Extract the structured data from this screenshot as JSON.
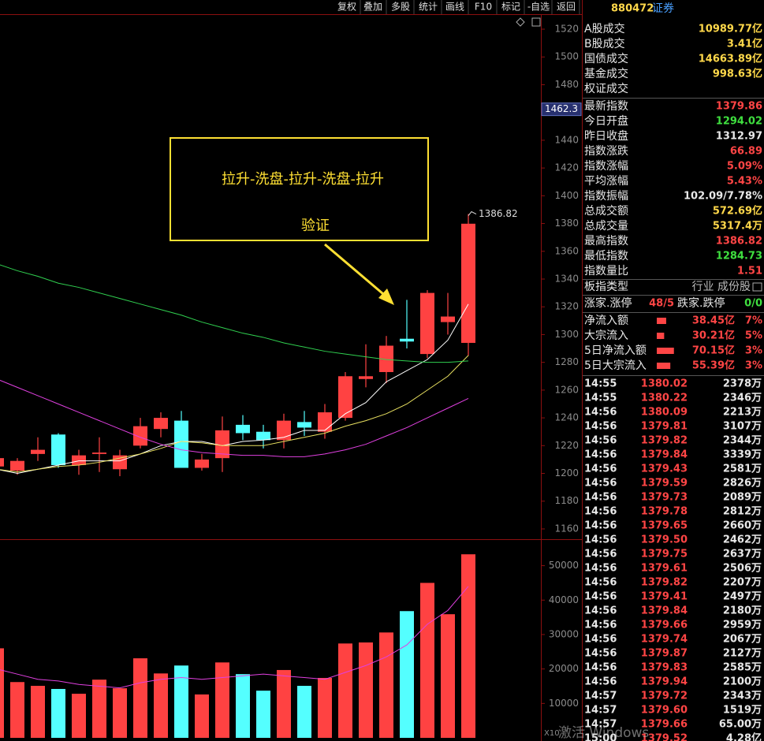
{
  "toolbar": [
    "复权",
    "叠加",
    "多股",
    "统计",
    "画线",
    "F10",
    "标记",
    "-自选",
    "返回"
  ],
  "header": {
    "code": "880472",
    "name": "证券"
  },
  "price_chart": {
    "ylim": [
      1152.6,
      1530.8
    ],
    "yticks": [
      1520,
      1500,
      1480,
      1460,
      1440,
      1420,
      1400,
      1380,
      1360,
      1340,
      1320,
      1300,
      1280,
      1260,
      1240,
      1220,
      1200,
      1180,
      1160
    ],
    "cursor_price": 1462.3,
    "high_label": 1386.82,
    "annotation": {
      "title": "拉升-洗盘-拉升-洗盘-拉升",
      "note": "验证"
    },
    "up_color": "#ff4242",
    "down_color": "#54ffff",
    "candles": [
      {
        "open": 1205,
        "high": 1213,
        "low": 1203,
        "close": 1211
      },
      {
        "open": 1202,
        "high": 1211,
        "low": 1199,
        "close": 1209
      },
      {
        "open": 1214,
        "high": 1226,
        "low": 1209,
        "close": 1217
      },
      {
        "open": 1228,
        "high": 1229,
        "low": 1204,
        "close": 1206
      },
      {
        "open": 1206,
        "high": 1217,
        "low": 1199,
        "close": 1213
      },
      {
        "open": 1214,
        "high": 1226,
        "low": 1201,
        "close": 1215
      },
      {
        "open": 1203,
        "high": 1217,
        "low": 1198,
        "close": 1213
      },
      {
        "open": 1220,
        "high": 1240,
        "low": 1218,
        "close": 1234
      },
      {
        "open": 1232,
        "high": 1244,
        "low": 1226,
        "close": 1240
      },
      {
        "open": 1238,
        "high": 1245,
        "low": 1204,
        "close": 1204
      },
      {
        "open": 1204,
        "high": 1214,
        "low": 1202,
        "close": 1210
      },
      {
        "open": 1211,
        "high": 1241,
        "low": 1201,
        "close": 1231
      },
      {
        "open": 1235,
        "high": 1242,
        "low": 1224,
        "close": 1229
      },
      {
        "open": 1230,
        "high": 1235,
        "low": 1218,
        "close": 1224
      },
      {
        "open": 1224,
        "high": 1243,
        "low": 1218,
        "close": 1238
      },
      {
        "open": 1237,
        "high": 1245,
        "low": 1227,
        "close": 1233
      },
      {
        "open": 1230,
        "high": 1250,
        "low": 1225,
        "close": 1244
      },
      {
        "open": 1240,
        "high": 1273,
        "low": 1238,
        "close": 1270
      },
      {
        "open": 1268,
        "high": 1293,
        "low": 1262,
        "close": 1270
      },
      {
        "open": 1273,
        "high": 1299,
        "low": 1265,
        "close": 1292
      },
      {
        "open": 1297,
        "high": 1325,
        "low": 1290,
        "close": 1295
      },
      {
        "open": 1286,
        "high": 1332,
        "low": 1283,
        "close": 1330
      },
      {
        "open": 1309,
        "high": 1330,
        "low": 1300,
        "close": 1313
      },
      {
        "open": 1294.02,
        "high": 1386.82,
        "low": 1284.73,
        "close": 1379.86
      }
    ],
    "ma_lines": [
      {
        "color": "#ffffff",
        "values": [
          1203,
          1200,
          1203,
          1206,
          1209,
          1209,
          1209,
          1214,
          1220,
          1223,
          1223,
          1220,
          1223,
          1224,
          1226,
          1231,
          1231,
          1243,
          1251,
          1266,
          1274,
          1282,
          1296,
          1322
        ]
      },
      {
        "color": "#e8e060",
        "values": [
          1203,
          1201,
          1203,
          1205,
          1206,
          1208,
          1211,
          1214,
          1218,
          1223,
          1222,
          1220,
          1220,
          1220,
          1223,
          1226,
          1229,
          1234,
          1238,
          1243,
          1250,
          1260,
          1270,
          1285
        ]
      },
      {
        "color": "#e040e0",
        "values": [
          1268,
          1262,
          1256,
          1250,
          1244,
          1238,
          1232,
          1226,
          1221,
          1217,
          1215,
          1214,
          1213,
          1213,
          1212,
          1212,
          1214,
          1217,
          1221,
          1227,
          1233,
          1240,
          1247,
          1254
        ]
      },
      {
        "color": "#30d050",
        "values": [
          1351,
          1346,
          1342,
          1337,
          1334,
          1330,
          1326,
          1322,
          1318,
          1314,
          1309,
          1305,
          1301,
          1298,
          1294,
          1291,
          1288,
          1286,
          1284,
          1282,
          1281,
          1280,
          1280,
          1281
        ]
      }
    ]
  },
  "volume_chart": {
    "ylim": [
      0,
      57000
    ],
    "yticks": [
      50000,
      40000,
      30000,
      20000,
      10000
    ],
    "unit_label": "X10",
    "bars": [
      26000,
      16200,
      15100,
      14200,
      12800,
      16900,
      14400,
      23100,
      18700,
      21000,
      12600,
      21900,
      18500,
      13700,
      19700,
      15100,
      17400,
      27400,
      27700,
      30600,
      36800,
      45000,
      35900,
      53300
    ],
    "ma": {
      "color": "#e040e0",
      "values": [
        20000,
        18500,
        17000,
        16500,
        15500,
        15000,
        14500,
        16000,
        17000,
        17500,
        17000,
        17500,
        18000,
        18500,
        18000,
        17500,
        17000,
        19000,
        21000,
        23500,
        27000,
        33000,
        37000,
        44000
      ]
    }
  },
  "turnover": [
    {
      "label": "A股成交",
      "value": "10989.77亿",
      "color": "#ffd84a"
    },
    {
      "label": "B股成交",
      "value": "3.41亿",
      "color": "#ffd84a"
    },
    {
      "label": "国债成交",
      "value": "14663.89亿",
      "color": "#ffd84a"
    },
    {
      "label": "基金成交",
      "value": "998.63亿",
      "color": "#ffd84a"
    },
    {
      "label": "权证成交"
    }
  ],
  "index_stats": [
    {
      "label": "最新指数",
      "value": "1379.86",
      "color": "#ff4545"
    },
    {
      "label": "今日开盘",
      "value": "1294.02",
      "color": "#3fdf3f"
    },
    {
      "label": "昨日收盘",
      "value": "1312.97",
      "color": "#e8e8e8"
    },
    {
      "label": "指数涨跌",
      "value": "66.89",
      "color": "#ff4545"
    },
    {
      "label": "指数涨幅",
      "value": "5.09%",
      "color": "#ff4545"
    },
    {
      "label": "平均涨幅",
      "value": "5.43%",
      "color": "#ff4545"
    },
    {
      "label": "指数振幅",
      "value": "102.09/7.78%",
      "color": "#e8e8e8"
    },
    {
      "label": "总成交额",
      "value": "572.69亿",
      "color": "#ffd84a"
    },
    {
      "label": "总成交量",
      "value": "5317.4万",
      "color": "#ffd84a"
    },
    {
      "label": "最高指数",
      "value": "1386.82",
      "color": "#ff4545"
    },
    {
      "label": "最低指数",
      "value": "1284.73",
      "color": "#3fdf3f"
    },
    {
      "label": "指数量比",
      "value": "1.51",
      "color": "#ff4545"
    }
  ],
  "sector": {
    "label": "板指类型",
    "value": "行业 成份股"
  },
  "breadth": {
    "up_label": "涨家.涨停",
    "up_value": "48/5",
    "down_label": "跌家.跌停",
    "down_value": "0/0"
  },
  "flows": {
    "labels": [
      "净流入额",
      "大宗流入",
      "5日净流入额",
      "5日大宗流入"
    ],
    "values": [
      38.45,
      30.21,
      70.15,
      55.39
    ],
    "value_labels": [
      "38.45亿",
      "30.21亿",
      "70.15亿",
      "55.39亿"
    ],
    "shares": [
      "7%",
      "5%",
      "3%",
      "3%"
    ]
  },
  "ticks": [
    [
      "14:55",
      "1380.02",
      "2378万"
    ],
    [
      "14:55",
      "1380.22",
      "2346万"
    ],
    [
      "14:56",
      "1380.09",
      "2213万"
    ],
    [
      "14:56",
      "1379.81",
      "3107万"
    ],
    [
      "14:56",
      "1379.82",
      "2344万"
    ],
    [
      "14:56",
      "1379.84",
      "3339万"
    ],
    [
      "14:56",
      "1379.43",
      "2581万"
    ],
    [
      "14:56",
      "1379.59",
      "2826万"
    ],
    [
      "14:56",
      "1379.73",
      "2089万"
    ],
    [
      "14:56",
      "1379.78",
      "2812万"
    ],
    [
      "14:56",
      "1379.65",
      "2660万"
    ],
    [
      "14:56",
      "1379.50",
      "2462万"
    ],
    [
      "14:56",
      "1379.75",
      "2637万"
    ],
    [
      "14:56",
      "1379.61",
      "2506万"
    ],
    [
      "14:56",
      "1379.82",
      "2207万"
    ],
    [
      "14:56",
      "1379.41",
      "2497万"
    ],
    [
      "14:56",
      "1379.84",
      "2180万"
    ],
    [
      "14:56",
      "1379.66",
      "2959万"
    ],
    [
      "14:56",
      "1379.74",
      "2067万"
    ],
    [
      "14:56",
      "1379.87",
      "2127万"
    ],
    [
      "14:56",
      "1379.83",
      "2585万"
    ],
    [
      "14:56",
      "1379.94",
      "2100万"
    ],
    [
      "14:57",
      "1379.72",
      "2343万"
    ],
    [
      "14:57",
      "1379.60",
      "1519万"
    ],
    [
      "14:57",
      "1379.66",
      "65.00万"
    ],
    [
      "15:00",
      "1379.52",
      "4.28亿"
    ]
  ],
  "watermark": "激活 Windows"
}
